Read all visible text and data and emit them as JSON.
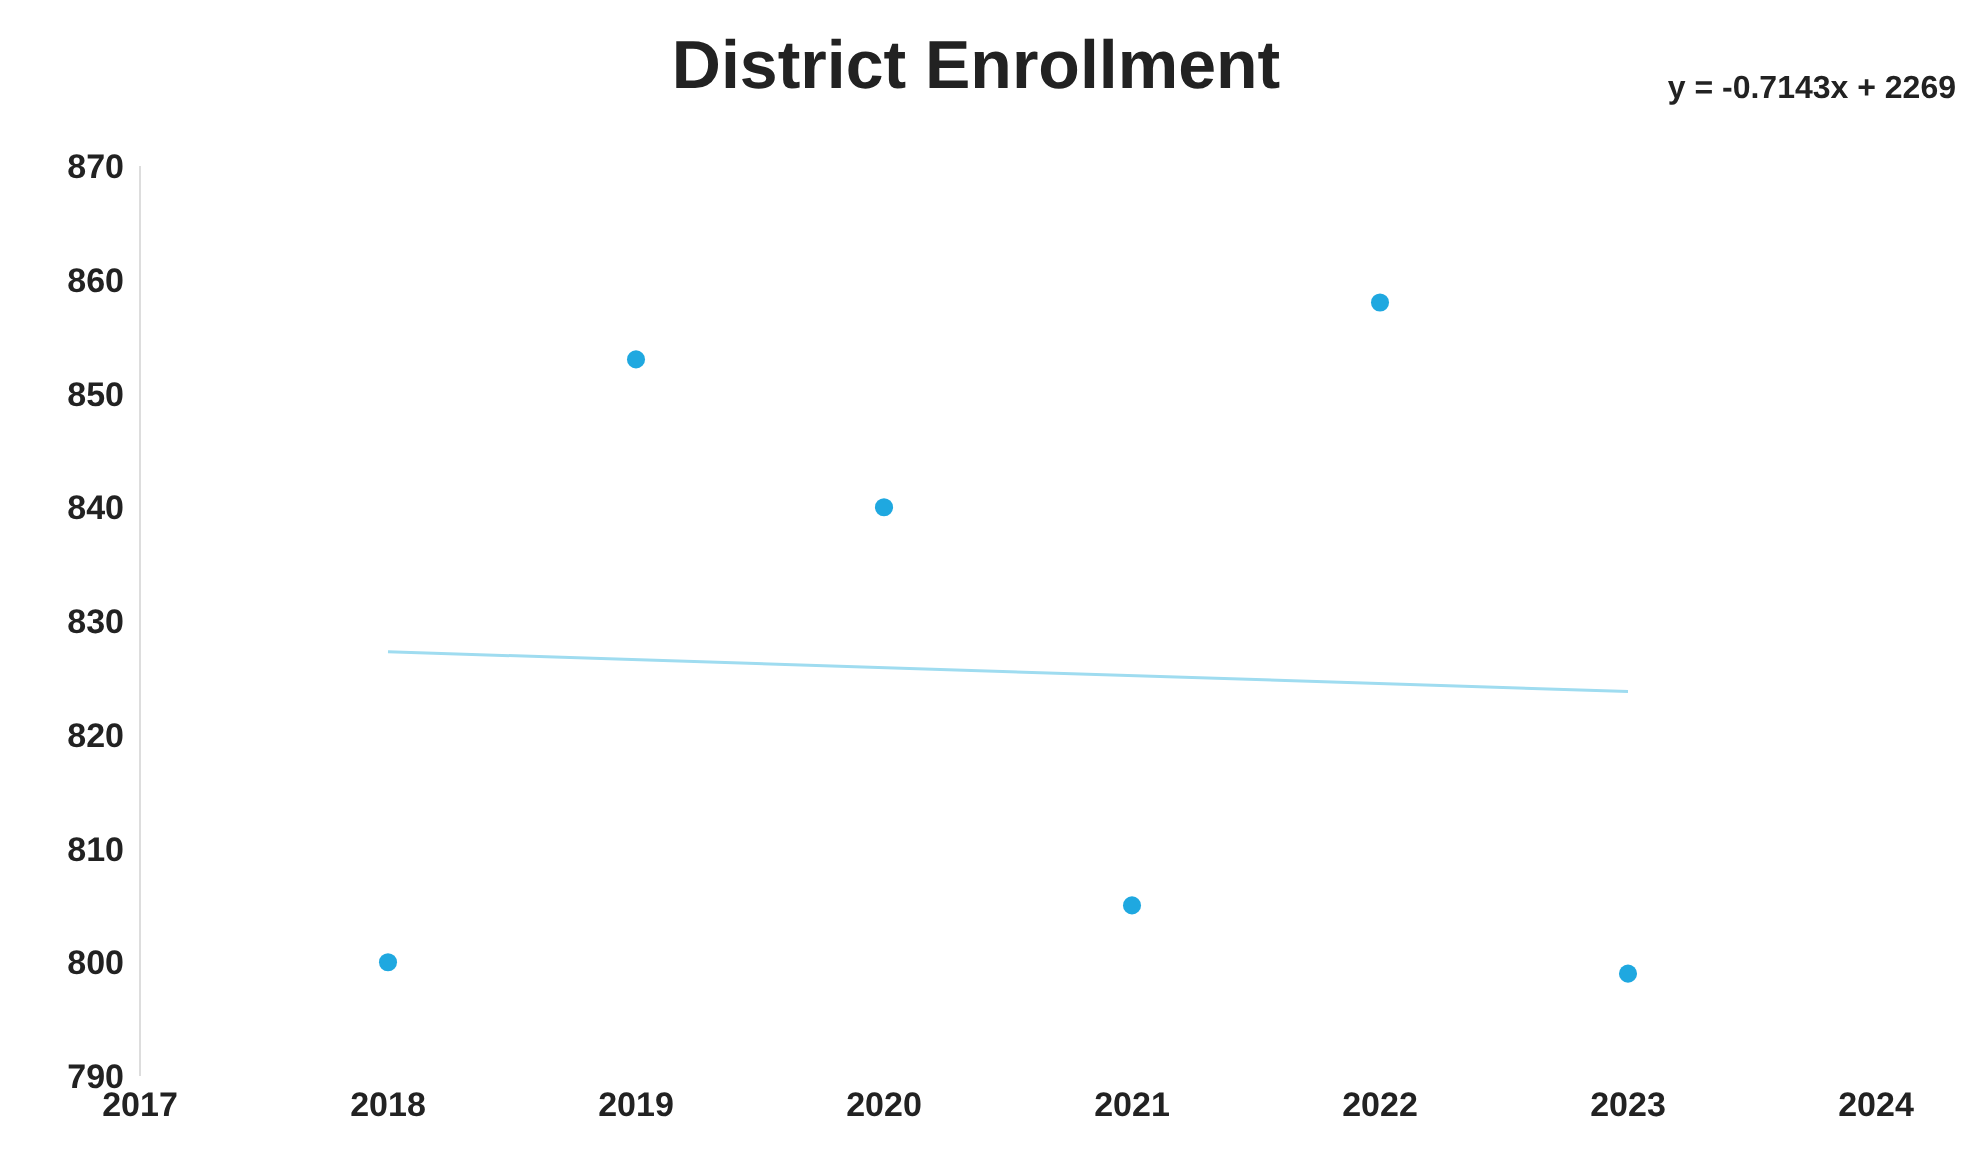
{
  "chart_data": {
    "type": "scatter",
    "title": "District Enrollment",
    "annotations": [
      "y = -0.7143x + 2269"
    ],
    "x": [
      2018,
      2019,
      2020,
      2021,
      2022,
      2023
    ],
    "series": [
      {
        "type": "scatter",
        "color": "#1fa8e0",
        "values": [
          800,
          853,
          840,
          805,
          858,
          799
        ]
      },
      {
        "type": "line",
        "color": "#9fdcf0",
        "x": [
          2018,
          2023
        ],
        "values": [
          827.3,
          823.8
        ],
        "marker": "none"
      }
    ],
    "xlim": [
      2017,
      2024
    ],
    "xticks": [
      2017,
      2018,
      2019,
      2020,
      2021,
      2022,
      2023,
      2024
    ],
    "ylim": [
      790,
      870
    ],
    "yticks": [
      790,
      800,
      810,
      820,
      830,
      840,
      850,
      860,
      870
    ],
    "grid": false,
    "marker": "circle"
  }
}
